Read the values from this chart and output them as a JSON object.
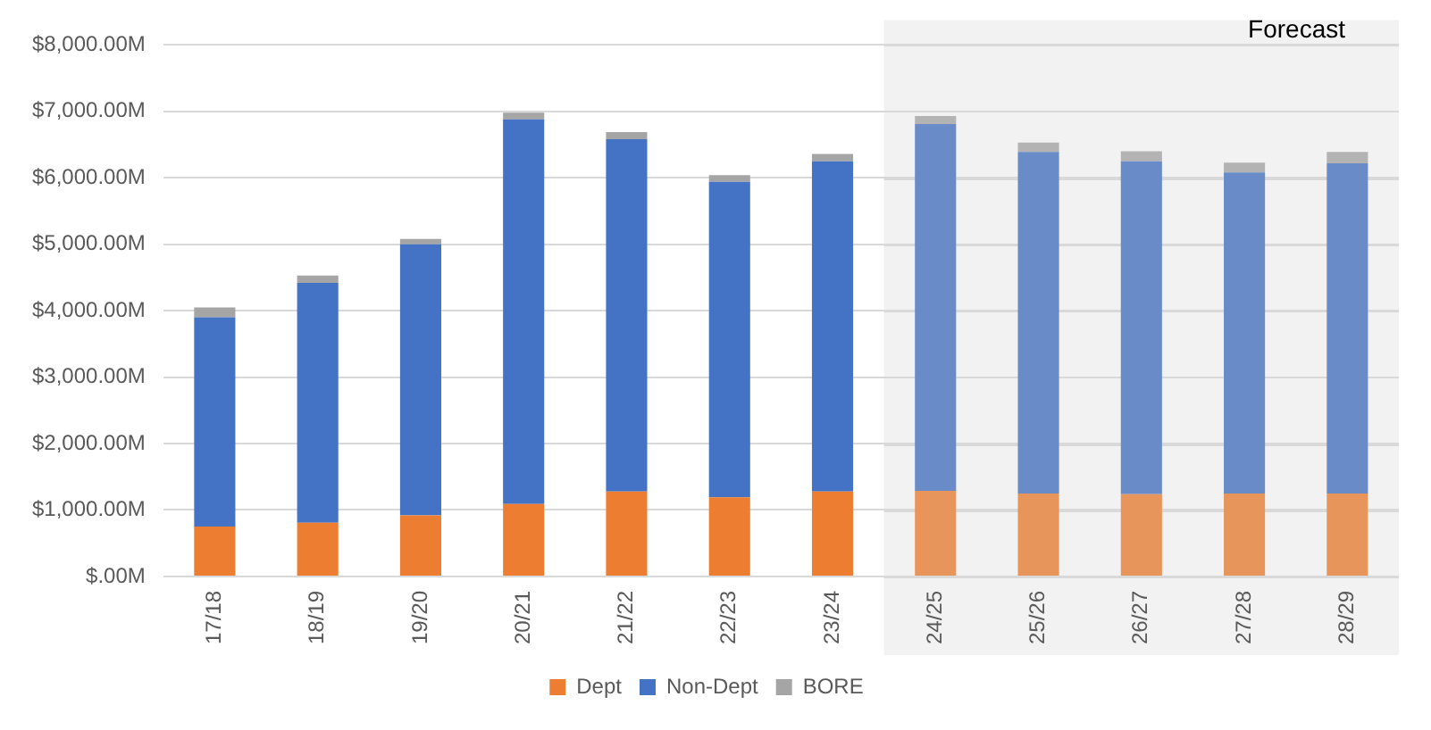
{
  "chart_data": {
    "type": "bar",
    "stacked": true,
    "categories": [
      "17/18",
      "18/19",
      "19/20",
      "20/21",
      "21/22",
      "22/23",
      "23/24",
      "24/25",
      "25/26",
      "26/27",
      "27/28",
      "28/29"
    ],
    "series": [
      {
        "name": "Dept",
        "color": "#ed7d31",
        "colors": [
          "#ed7d31",
          "#ed7d31",
          "#ed7d31",
          "#ed7d31",
          "#ed7d31",
          "#ed7d31",
          "#ed7d31",
          "#e8955c",
          "#e8955c",
          "#e8955c",
          "#e8955c",
          "#e8955c"
        ],
        "values": [
          750,
          810,
          920,
          1090,
          1280,
          1190,
          1280,
          1290,
          1250,
          1240,
          1250,
          1250
        ]
      },
      {
        "name": "Non-Dept",
        "color": "#4472c4",
        "colors": [
          "#4472c4",
          "#4472c4",
          "#4472c4",
          "#4472c4",
          "#4472c4",
          "#4472c4",
          "#4472c4",
          "#698cc9",
          "#698cc9",
          "#698cc9",
          "#698cc9",
          "#698cc9"
        ],
        "values": [
          3150,
          3610,
          4080,
          5790,
          5300,
          4750,
          4970,
          5520,
          5140,
          5010,
          4830,
          4970
        ]
      },
      {
        "name": "BORE",
        "color": "#a5a5a5",
        "colors": [
          "#a5a5a5",
          "#a5a5a5",
          "#a5a5a5",
          "#a5a5a5",
          "#a5a5a5",
          "#a5a5a5",
          "#a5a5a5",
          "#b3b3b3",
          "#b3b3b3",
          "#b3b3b3",
          "#b3b3b3",
          "#b3b3b3"
        ],
        "values": [
          150,
          110,
          80,
          100,
          110,
          100,
          110,
          120,
          140,
          150,
          150,
          170
        ]
      }
    ],
    "ylim": [
      0,
      8000
    ],
    "yticks": [
      {
        "value": 0,
        "label": "$.00M"
      },
      {
        "value": 1000,
        "label": "$1,000.00M"
      },
      {
        "value": 2000,
        "label": "$2,000.00M"
      },
      {
        "value": 3000,
        "label": "$3,000.00M"
      },
      {
        "value": 4000,
        "label": "$4,000.00M"
      },
      {
        "value": 5000,
        "label": "$5,000.00M"
      },
      {
        "value": 6000,
        "label": "$6,000.00M"
      },
      {
        "value": 7000,
        "label": "$7,000.00M"
      },
      {
        "value": 8000,
        "label": "$8,000.00M"
      }
    ],
    "grid": "y",
    "legend": "bottom",
    "bands": [
      {
        "axis": "x",
        "from": "24/25",
        "to": "28/29",
        "label": "Forecast",
        "color": "#f2f2f2"
      }
    ]
  }
}
